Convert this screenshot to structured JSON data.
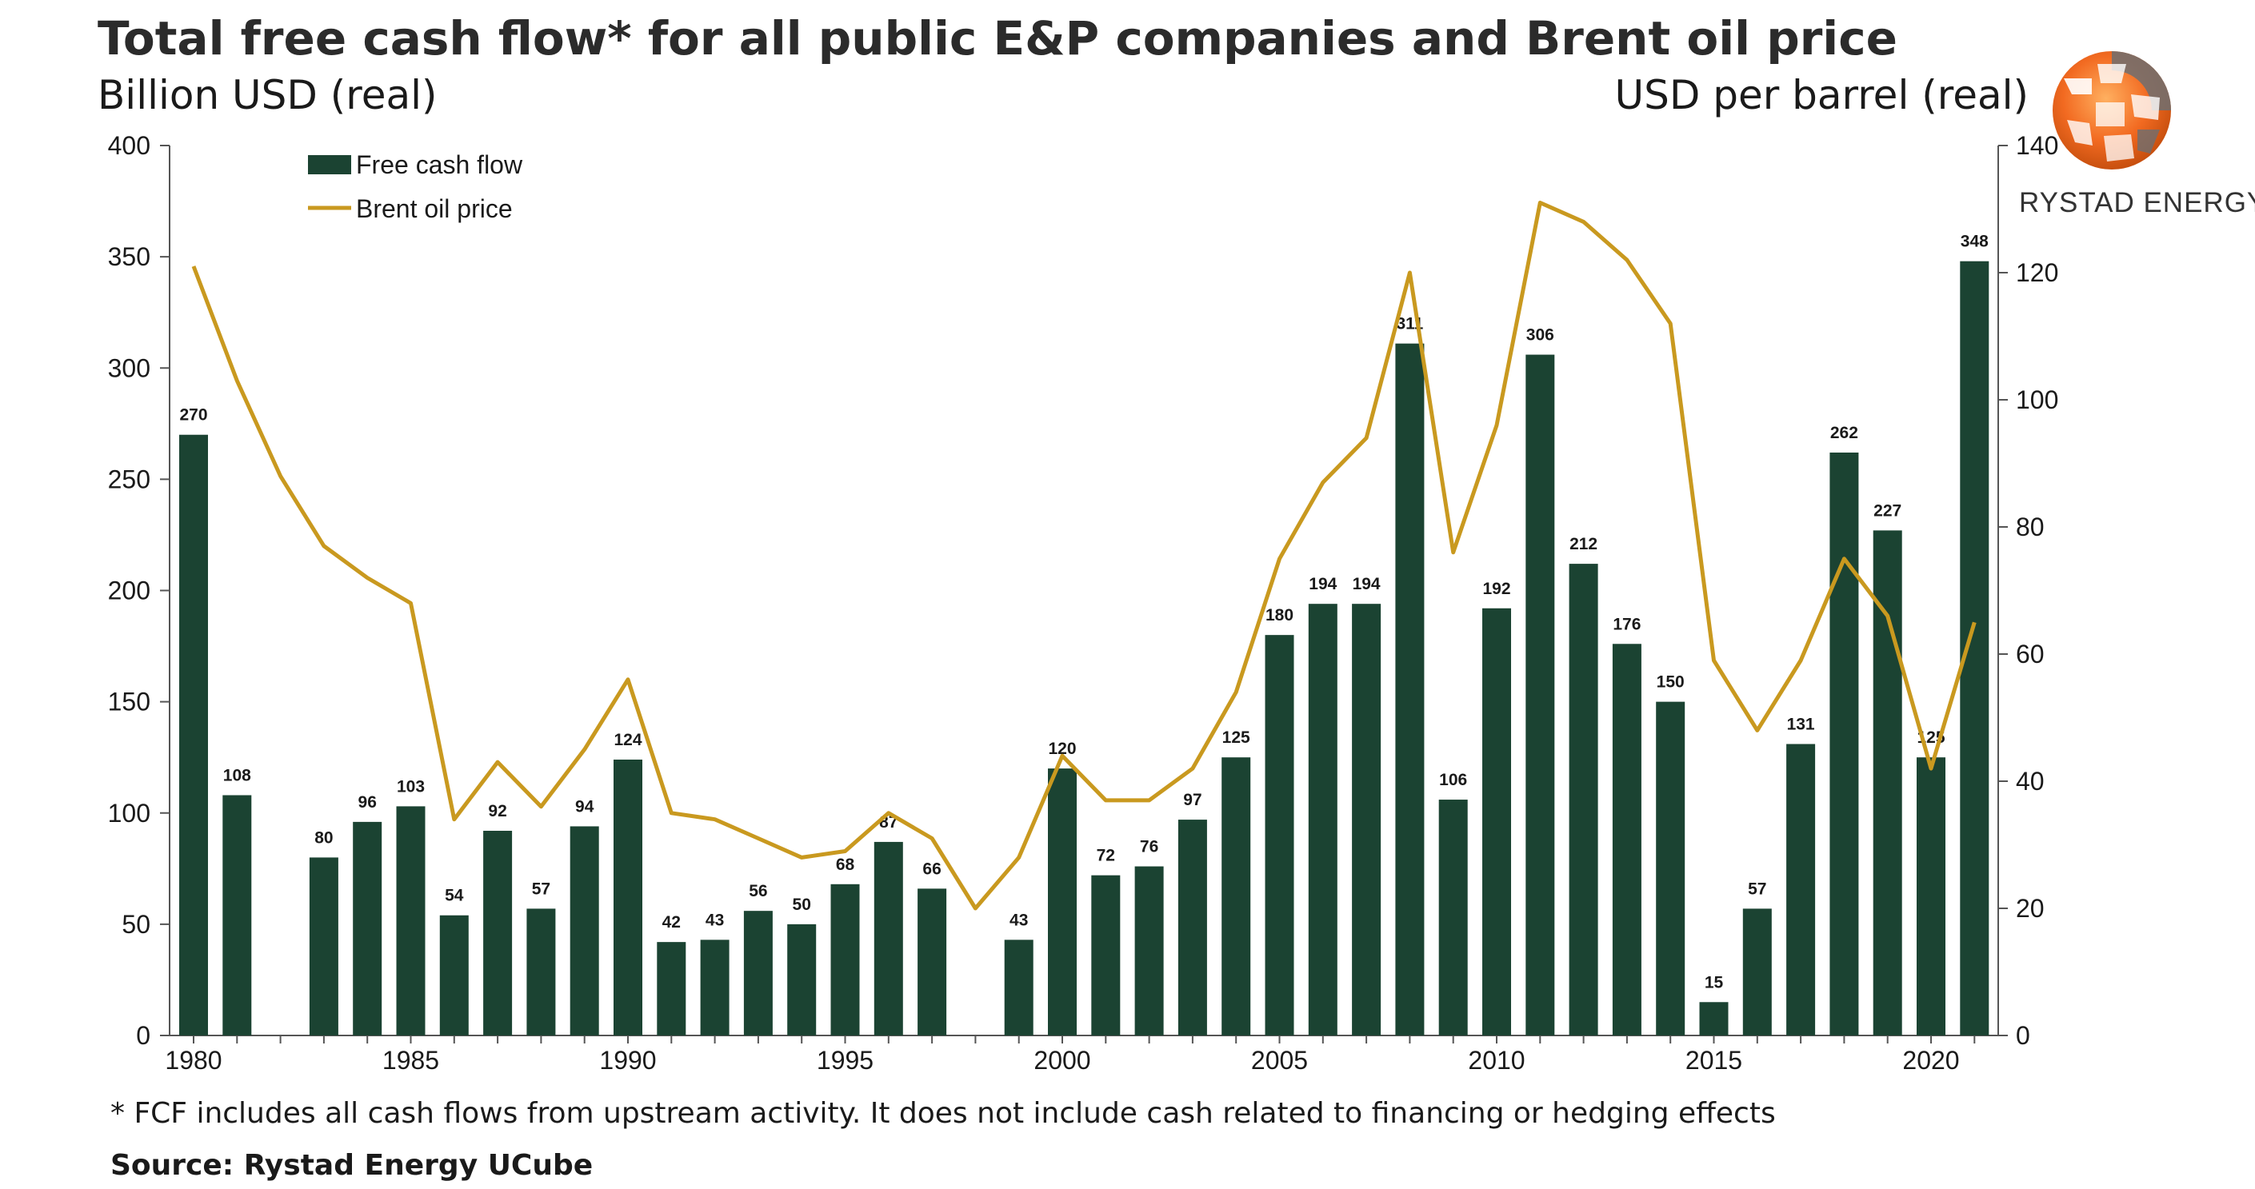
{
  "title": "Total free cash flow* for all public E&P companies and Brent oil price",
  "left_unit": "Billion USD (real)",
  "right_unit": "USD per barrel (real)",
  "footnote": "* FCF includes all cash flows from upstream activity. It does not include cash related to financing or hedging effects",
  "source": "Source: Rystad Energy UCube",
  "logo": {
    "text": "RYSTAD ENERGY",
    "icon": "rystad-globe-logo",
    "colors": [
      "#f26a21",
      "#ffffff",
      "#6d6e71"
    ]
  },
  "colors": {
    "bar": "#1b4332",
    "line": "#c9991f",
    "axis": "#555555",
    "text": "#1a1a1a"
  },
  "chart_data": {
    "type": "bar+line",
    "x": [
      1980,
      1981,
      1982,
      1983,
      1984,
      1985,
      1986,
      1987,
      1988,
      1989,
      1990,
      1991,
      1992,
      1993,
      1994,
      1995,
      1996,
      1997,
      1998,
      1999,
      2000,
      2001,
      2002,
      2003,
      2004,
      2005,
      2006,
      2007,
      2008,
      2009,
      2010,
      2011,
      2012,
      2013,
      2014,
      2015,
      2016,
      2017,
      2018,
      2019,
      2020,
      2021
    ],
    "x_tick_labels": [
      "1980",
      "1985",
      "1990",
      "1995",
      "2000",
      "2005",
      "2010",
      "2015",
      "2020"
    ],
    "x_ticks": [
      1980,
      1985,
      1990,
      1995,
      2000,
      2005,
      2010,
      2015,
      2020
    ],
    "legend_position": "top-left",
    "series": [
      {
        "name": "Free cash flow",
        "type": "bar",
        "axis": "left",
        "values": [
          270,
          108,
          0,
          80,
          96,
          103,
          54,
          92,
          57,
          94,
          124,
          42,
          43,
          56,
          50,
          68,
          87,
          66,
          0,
          43,
          120,
          72,
          76,
          97,
          125,
          180,
          194,
          194,
          311,
          106,
          192,
          306,
          212,
          176,
          150,
          15,
          57,
          131,
          262,
          227,
          125,
          348
        ],
        "labels": [
          "270",
          "108",
          "",
          "80",
          "96",
          "103",
          "54",
          "92",
          "57",
          "94",
          "124",
          "42",
          "43",
          "56",
          "50",
          "68",
          "87",
          "66",
          "",
          "43",
          "120",
          "72",
          "76",
          "97",
          "125",
          "180",
          "194",
          "194",
          "311",
          "106",
          "192",
          "306",
          "212",
          "176",
          "150",
          "15",
          "57",
          "131",
          "262",
          "227",
          "125",
          "348"
        ]
      },
      {
        "name": "Brent oil price",
        "type": "line",
        "axis": "right",
        "values": [
          121,
          103,
          88,
          77,
          72,
          68,
          34,
          43,
          36,
          45,
          56,
          35,
          34,
          31,
          28,
          29,
          35,
          31,
          20,
          28,
          44,
          37,
          37,
          42,
          54,
          75,
          87,
          94,
          120,
          76,
          96,
          131,
          128,
          122,
          112,
          59,
          48,
          59,
          75,
          66,
          42,
          65
        ]
      }
    ],
    "y_left": {
      "range": [
        0,
        400
      ],
      "ticks": [
        0,
        50,
        100,
        150,
        200,
        250,
        300,
        350,
        400
      ]
    },
    "y_right": {
      "range": [
        0,
        140
      ],
      "ticks": [
        0,
        20,
        40,
        60,
        80,
        100,
        120,
        140
      ]
    },
    "grid": false
  }
}
